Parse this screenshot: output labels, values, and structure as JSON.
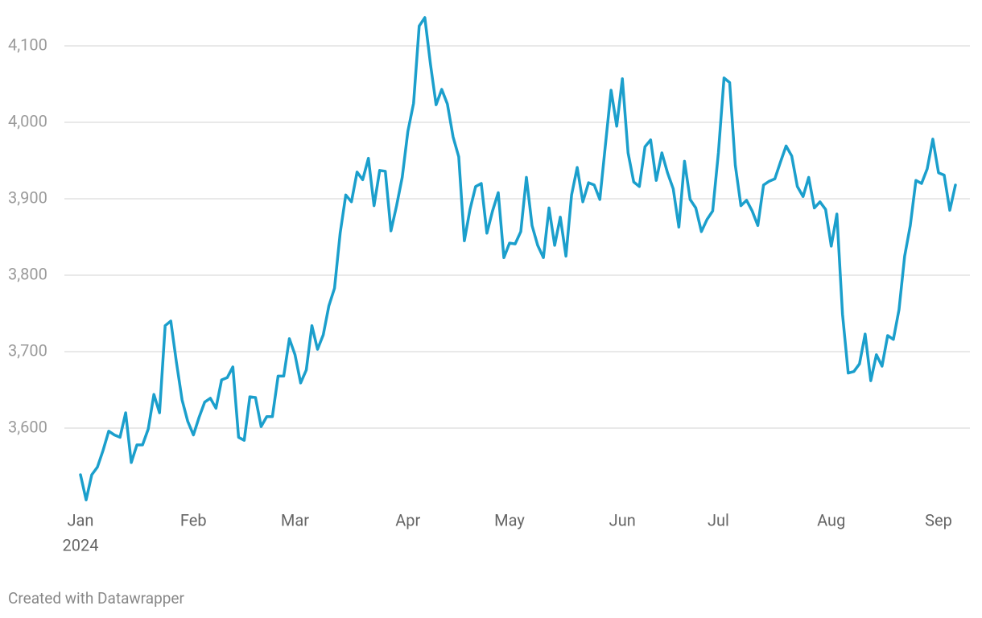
{
  "chart_data": {
    "type": "line",
    "categories": [
      "Jan",
      null,
      null,
      null,
      null,
      null,
      null,
      null,
      null,
      null,
      null,
      null,
      null,
      null,
      null,
      null,
      null,
      null,
      null,
      null,
      "Feb",
      null,
      null,
      null,
      null,
      null,
      null,
      null,
      null,
      null,
      null,
      null,
      null,
      null,
      null,
      null,
      null,
      null,
      "Mar",
      null,
      null,
      null,
      null,
      null,
      null,
      null,
      null,
      null,
      null,
      null,
      null,
      null,
      null,
      null,
      null,
      null,
      null,
      null,
      "Apr",
      null,
      null,
      null,
      null,
      null,
      null,
      null,
      null,
      null,
      null,
      null,
      null,
      null,
      null,
      null,
      null,
      null,
      "May",
      null,
      null,
      null,
      null,
      null,
      null,
      null,
      null,
      null,
      null,
      null,
      null,
      null,
      null,
      null,
      null,
      null,
      null,
      null,
      "Jun",
      null,
      null,
      null,
      null,
      null,
      null,
      null,
      null,
      null,
      null,
      null,
      null,
      null,
      null,
      null,
      null,
      "Jul",
      null,
      null,
      null,
      null,
      null,
      null,
      null,
      null,
      null,
      null,
      null,
      null,
      null,
      null,
      null,
      null,
      null,
      null,
      null,
      "Aug",
      null,
      null,
      null,
      null,
      null,
      null,
      null,
      null,
      null,
      null,
      null,
      null,
      null,
      null,
      null,
      null,
      null,
      null,
      "Sep",
      null,
      null,
      null
    ],
    "year_label": "2024",
    "values": [
      3539,
      3506,
      3539,
      3549,
      3571,
      3596,
      3591,
      3588,
      3620,
      3555,
      3578,
      3578,
      3599,
      3644,
      3620,
      3734,
      3740,
      3686,
      3637,
      3609,
      3591,
      3614,
      3634,
      3639,
      3626,
      3663,
      3666,
      3680,
      3588,
      3584,
      3641,
      3640,
      3602,
      3615,
      3615,
      3668,
      3668,
      3717,
      3696,
      3659,
      3676,
      3734,
      3703,
      3722,
      3760,
      3783,
      3855,
      3905,
      3896,
      3935,
      3925,
      3953,
      3891,
      3937,
      3936,
      3858,
      3891,
      3928,
      3988,
      4025,
      4126,
      4137,
      4076,
      4023,
      4043,
      4024,
      3981,
      3955,
      3845,
      3886,
      3916,
      3920,
      3855,
      3884,
      3908,
      3823,
      3842,
      3841,
      3857,
      3928,
      3865,
      3839,
      3823,
      3888,
      3839,
      3876,
      3825,
      3905,
      3941,
      3896,
      3921,
      3918,
      3899,
      3971,
      4042,
      3995,
      4057,
      3960,
      3922,
      3916,
      3968,
      3977,
      3924,
      3960,
      3934,
      3913,
      3863,
      3949,
      3899,
      3888,
      3857,
      3873,
      3884,
      3960,
      4058,
      4052,
      3944,
      3891,
      3898,
      3884,
      3865,
      3918,
      3923,
      3926,
      3948,
      3969,
      3956,
      3916,
      3903,
      3928,
      3888,
      3896,
      3886,
      3838,
      3880,
      3749,
      3672,
      3674,
      3684,
      3723,
      3662,
      3696,
      3681,
      3721,
      3716,
      3755,
      3825,
      3865,
      3924,
      3920,
      3939,
      3978,
      3934,
      3931,
      3885,
      3918
    ],
    "color": "#1b9fcc",
    "ylim": [
      3500,
      4140
    ],
    "yticks": [
      {
        "value": 3600,
        "label": "3,600"
      },
      {
        "value": 3700,
        "label": "3,700"
      },
      {
        "value": 3800,
        "label": "3,800"
      },
      {
        "value": 3900,
        "label": "3,900"
      },
      {
        "value": 4000,
        "label": "4,000"
      },
      {
        "value": 4100,
        "label": "4,100"
      }
    ],
    "grid": true
  },
  "credit": "Created with Datawrapper"
}
